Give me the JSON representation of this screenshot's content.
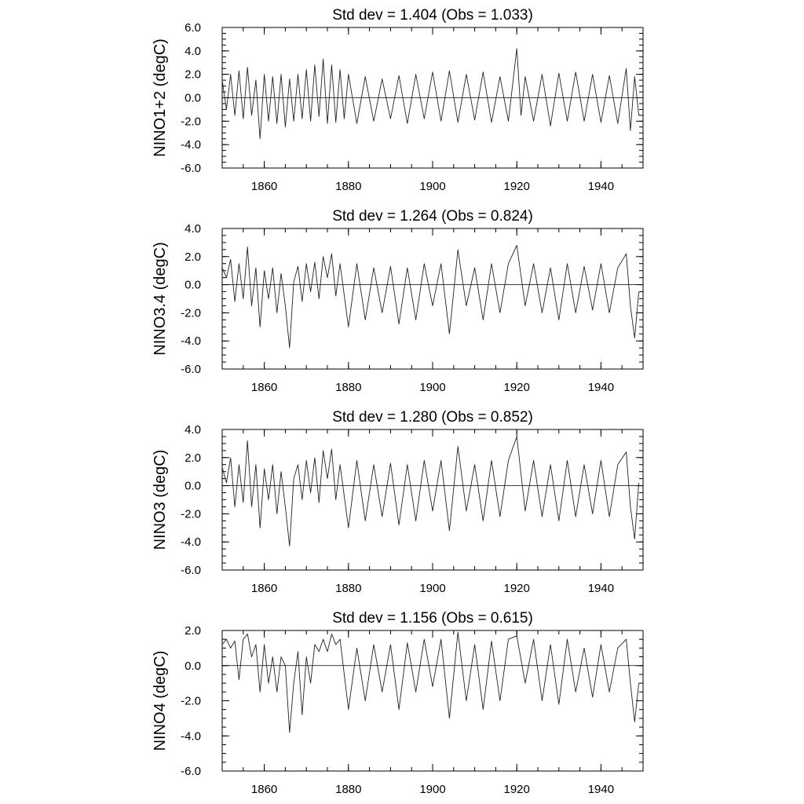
{
  "chart_data": [
    {
      "type": "line",
      "title": "Std dev = 1.404 (Obs = 1.033)",
      "xlabel": "",
      "ylabel": "NINO1+2 (degC)",
      "xlim": [
        1850,
        1950
      ],
      "ylim": [
        -6.0,
        6.0
      ],
      "x_ticks": [
        "1860",
        "1880",
        "1900",
        "1920",
        "1940"
      ],
      "y_ticks": [
        "6.0",
        "4.0",
        "2.0",
        "0.0",
        "-2.0",
        "-4.0",
        "-6.0"
      ],
      "zero_line": true,
      "grid": false,
      "series": [
        {
          "x": [
            1850,
            1851,
            1852,
            1853,
            1854,
            1855,
            1856,
            1857,
            1858,
            1859,
            1860,
            1861,
            1862,
            1863,
            1864,
            1865,
            1866,
            1867,
            1868,
            1869,
            1870,
            1871,
            1872,
            1873,
            1874,
            1875,
            1876,
            1877,
            1878,
            1879,
            1880,
            1882,
            1884,
            1886,
            1888,
            1890,
            1892,
            1894,
            1896,
            1898,
            1900,
            1902,
            1904,
            1906,
            1908,
            1910,
            1912,
            1914,
            1916,
            1918,
            1920,
            1921,
            1922,
            1924,
            1926,
            1928,
            1930,
            1932,
            1934,
            1936,
            1938,
            1940,
            1942,
            1944,
            1946,
            1947,
            1948,
            1949
          ],
          "values": [
            1.5,
            -1.0,
            2.0,
            -1.5,
            2.3,
            -1.8,
            2.6,
            -1.5,
            1.5,
            -3.5,
            2.0,
            -2.0,
            1.8,
            -2.2,
            2.0,
            -2.5,
            1.6,
            -2.0,
            2.0,
            -1.8,
            2.4,
            -2.0,
            2.8,
            -1.6,
            3.3,
            -2.2,
            2.8,
            -2.1,
            2.4,
            -1.8,
            2.0,
            -2.2,
            1.8,
            -2.0,
            1.6,
            -1.8,
            1.9,
            -2.2,
            2.0,
            -1.8,
            2.2,
            -2.0,
            2.3,
            -2.1,
            2.0,
            -1.9,
            2.2,
            -2.1,
            1.8,
            -2.0,
            4.2,
            -1.5,
            1.8,
            -2.0,
            2.0,
            -2.4,
            2.1,
            -2.0,
            2.2,
            -2.0,
            2.0,
            -2.1,
            1.9,
            -2.2,
            2.5,
            -2.8,
            1.8,
            -1.5
          ]
        }
      ]
    },
    {
      "type": "line",
      "title": "Std dev = 1.264 (Obs = 0.824)",
      "xlabel": "",
      "ylabel": "NINO3.4 (degC)",
      "xlim": [
        1850,
        1950
      ],
      "ylim": [
        -6.0,
        4.0
      ],
      "x_ticks": [
        "1860",
        "1880",
        "1900",
        "1920",
        "1940"
      ],
      "y_ticks": [
        "4.0",
        "2.0",
        "0.0",
        "-2.0",
        "-4.0",
        "-6.0"
      ],
      "zero_line": true,
      "grid": false,
      "series": [
        {
          "x": [
            1850,
            1851,
            1852,
            1853,
            1854,
            1855,
            1856,
            1857,
            1858,
            1859,
            1860,
            1861,
            1862,
            1863,
            1864,
            1865,
            1866,
            1867,
            1868,
            1869,
            1870,
            1871,
            1872,
            1873,
            1874,
            1875,
            1876,
            1877,
            1878,
            1880,
            1882,
            1884,
            1886,
            1888,
            1890,
            1892,
            1894,
            1896,
            1898,
            1900,
            1902,
            1904,
            1906,
            1908,
            1910,
            1912,
            1914,
            1916,
            1918,
            1920,
            1922,
            1924,
            1926,
            1928,
            1930,
            1932,
            1934,
            1936,
            1938,
            1940,
            1942,
            1944,
            1946,
            1947,
            1948,
            1949
          ],
          "values": [
            1.2,
            0.5,
            1.8,
            -1.2,
            1.5,
            -1.0,
            2.7,
            -1.5,
            1.2,
            -3.0,
            1.0,
            -1.0,
            1.2,
            -2.0,
            0.8,
            -1.5,
            -4.5,
            0.2,
            1.3,
            -1.2,
            1.5,
            -0.5,
            1.6,
            -1.0,
            2.0,
            0.5,
            2.2,
            -0.8,
            1.5,
            -3.0,
            1.5,
            -2.5,
            1.2,
            -2.0,
            1.3,
            -2.8,
            1.2,
            -2.5,
            1.5,
            -1.5,
            1.5,
            -3.5,
            2.5,
            -1.5,
            1.2,
            -2.5,
            1.5,
            -2.0,
            1.5,
            2.8,
            -1.5,
            1.5,
            -2.0,
            1.2,
            -2.5,
            1.5,
            -2.0,
            1.3,
            -1.8,
            1.5,
            -2.0,
            1.2,
            2.2,
            -1.5,
            -3.8,
            -0.5
          ]
        }
      ]
    },
    {
      "type": "line",
      "title": "Std dev = 1.280 (Obs = 0.852)",
      "xlabel": "",
      "ylabel": "NINO3 (degC)",
      "xlim": [
        1850,
        1950
      ],
      "ylim": [
        -6.0,
        4.0
      ],
      "x_ticks": [
        "1860",
        "1880",
        "1900",
        "1920",
        "1940"
      ],
      "y_ticks": [
        "4.0",
        "2.0",
        "0.0",
        "-2.0",
        "-4.0",
        "-6.0"
      ],
      "zero_line": true,
      "grid": false,
      "series": [
        {
          "x": [
            1850,
            1851,
            1852,
            1853,
            1854,
            1855,
            1856,
            1857,
            1858,
            1859,
            1860,
            1861,
            1862,
            1863,
            1864,
            1865,
            1866,
            1867,
            1868,
            1869,
            1870,
            1871,
            1872,
            1873,
            1874,
            1875,
            1876,
            1877,
            1878,
            1880,
            1882,
            1884,
            1886,
            1888,
            1890,
            1892,
            1894,
            1896,
            1898,
            1900,
            1902,
            1904,
            1906,
            1908,
            1910,
            1912,
            1914,
            1916,
            1918,
            1920,
            1922,
            1924,
            1926,
            1928,
            1930,
            1932,
            1934,
            1936,
            1938,
            1940,
            1942,
            1944,
            1946,
            1947,
            1948,
            1949
          ],
          "values": [
            1.3,
            0.2,
            2.0,
            -1.5,
            1.5,
            -1.2,
            3.2,
            -1.5,
            1.5,
            -3.0,
            1.2,
            -1.0,
            1.5,
            -2.0,
            1.0,
            -1.5,
            -4.3,
            0.5,
            1.5,
            -1.0,
            1.8,
            -0.5,
            2.0,
            -1.2,
            2.5,
            0.5,
            2.6,
            -1.0,
            1.5,
            -3.0,
            1.8,
            -2.5,
            1.5,
            -2.2,
            1.6,
            -2.8,
            1.5,
            -2.5,
            1.8,
            -1.8,
            1.8,
            -3.2,
            2.8,
            -1.8,
            1.5,
            -2.5,
            1.8,
            -2.2,
            1.8,
            3.5,
            -1.8,
            1.8,
            -2.2,
            1.5,
            -2.5,
            1.8,
            -2.2,
            1.5,
            -2.0,
            1.8,
            -2.2,
            1.5,
            2.4,
            -1.5,
            -3.8,
            0.2
          ]
        }
      ]
    },
    {
      "type": "line",
      "title": "Std dev = 1.156 (Obs = 0.615)",
      "xlabel": "",
      "ylabel": "NINO4 (degC)",
      "xlim": [
        1850,
        1950
      ],
      "ylim": [
        -6.0,
        2.0
      ],
      "x_ticks": [
        "1860",
        "1880",
        "1900",
        "1920",
        "1940"
      ],
      "y_ticks": [
        "2.0",
        "0.0",
        "-2.0",
        "-4.0",
        "-6.0"
      ],
      "zero_line": true,
      "grid": false,
      "series": [
        {
          "x": [
            1850,
            1851,
            1852,
            1853,
            1854,
            1855,
            1856,
            1857,
            1858,
            1859,
            1860,
            1861,
            1862,
            1863,
            1864,
            1865,
            1866,
            1867,
            1868,
            1869,
            1870,
            1871,
            1872,
            1873,
            1874,
            1875,
            1876,
            1877,
            1878,
            1880,
            1882,
            1884,
            1886,
            1888,
            1890,
            1892,
            1894,
            1896,
            1898,
            1900,
            1902,
            1904,
            1906,
            1908,
            1910,
            1912,
            1914,
            1916,
            1918,
            1920,
            1922,
            1924,
            1926,
            1928,
            1930,
            1932,
            1934,
            1936,
            1938,
            1940,
            1942,
            1944,
            1946,
            1947,
            1948,
            1949
          ],
          "values": [
            1.2,
            1.5,
            1.0,
            1.4,
            -0.8,
            1.5,
            1.8,
            0.5,
            1.2,
            -1.5,
            1.2,
            -1.0,
            0.5,
            -1.5,
            0.5,
            0.0,
            -3.8,
            -1.0,
            0.8,
            -2.8,
            0.5,
            -1.0,
            1.2,
            0.8,
            1.5,
            0.8,
            1.8,
            1.2,
            1.5,
            -2.5,
            1.0,
            -2.0,
            1.2,
            -1.5,
            1.2,
            -2.5,
            1.3,
            -1.5,
            1.5,
            -1.2,
            1.5,
            -3.0,
            1.9,
            -2.0,
            1.2,
            -2.5,
            1.4,
            -2.0,
            1.5,
            1.7,
            -1.0,
            1.5,
            -2.0,
            1.2,
            -2.2,
            1.5,
            -1.5,
            1.0,
            -1.8,
            1.2,
            -1.5,
            1.0,
            1.5,
            -1.0,
            -3.2,
            -1.0
          ]
        }
      ]
    }
  ]
}
